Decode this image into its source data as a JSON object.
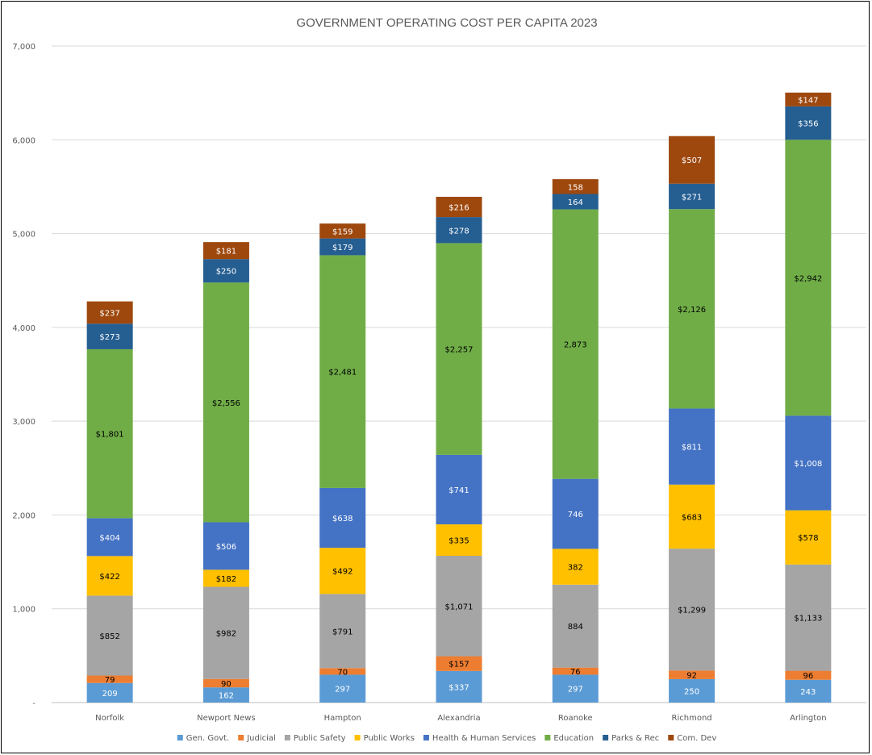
{
  "chart_data": {
    "type": "bar",
    "stacked": true,
    "title": "GOVERNMENT OPERATING COST PER CAPITA 2023",
    "xlabel": "",
    "ylabel": "",
    "ylim": [
      0,
      7000
    ],
    "y_ticks": [
      {
        "value": 0,
        "label": "-"
      },
      {
        "value": 1000,
        "label": "1,000"
      },
      {
        "value": 2000,
        "label": "2,000"
      },
      {
        "value": 3000,
        "label": "3,000"
      },
      {
        "value": 4000,
        "label": "4,000"
      },
      {
        "value": 5000,
        "label": "5,000"
      },
      {
        "value": 6000,
        "label": "6,000"
      },
      {
        "value": 7000,
        "label": "7,000"
      }
    ],
    "grid": true,
    "legend_position": "bottom",
    "categories": [
      "Norfolk",
      "Newport News",
      "Hampton",
      "Alexandria",
      "Roanoke",
      "Richmond",
      "Arlington"
    ],
    "series": [
      {
        "name": "Gen. Govt.",
        "color": "#5B9BD5",
        "label_color": "#ffffff",
        "values": [
          209,
          162,
          297,
          337,
          297,
          250,
          243
        ],
        "labels": [
          "209",
          "162",
          "297",
          "$337",
          "297",
          "250",
          "243"
        ]
      },
      {
        "name": "Judicial",
        "color": "#ED7D31",
        "label_color": "#000000",
        "values": [
          79,
          90,
          70,
          157,
          76,
          92,
          96
        ],
        "labels": [
          "79",
          "90",
          "70",
          "$157",
          "76",
          "92",
          "96"
        ]
      },
      {
        "name": "Public Safety",
        "color": "#A5A5A5",
        "label_color": "#000000",
        "values": [
          852,
          982,
          791,
          1071,
          884,
          1299,
          1133
        ],
        "labels": [
          "$852",
          "$982",
          "$791",
          "$1,071",
          "884",
          "$1,299",
          "$1,133"
        ]
      },
      {
        "name": "Public Works",
        "color": "#FFC000",
        "label_color": "#000000",
        "values": [
          422,
          182,
          492,
          335,
          382,
          683,
          578
        ],
        "labels": [
          "$422",
          "$182",
          "$492",
          "$335",
          "382",
          "$683",
          "$578"
        ]
      },
      {
        "name": "Health & Human Services",
        "color": "#4472C4",
        "label_color": "#ffffff",
        "values": [
          404,
          506,
          638,
          741,
          746,
          811,
          1008
        ],
        "labels": [
          "$404",
          "$506",
          "$638",
          "$741",
          "746",
          "$811",
          "$1,008"
        ]
      },
      {
        "name": "Education",
        "color": "#70AD47",
        "label_color": "#000000",
        "values": [
          1801,
          2556,
          2481,
          2257,
          2873,
          2126,
          2942
        ],
        "labels": [
          "$1,801",
          "$2,556",
          "$2,481",
          "$2,257",
          "2,873",
          "$2,126",
          "$2,942"
        ]
      },
      {
        "name": "Parks & Rec",
        "color": "#255E91",
        "label_color": "#ffffff",
        "values": [
          273,
          250,
          179,
          278,
          164,
          271,
          356
        ],
        "labels": [
          "$273",
          "$250",
          "$179",
          "$278",
          "164",
          "$271",
          "$356"
        ]
      },
      {
        "name": "Com. Dev",
        "color": "#9E480E",
        "label_color": "#ffffff",
        "values": [
          237,
          181,
          159,
          216,
          158,
          507,
          147
        ],
        "labels": [
          "$237",
          "$181",
          "$159",
          "$216",
          "158",
          "$507",
          "$147"
        ]
      }
    ]
  }
}
